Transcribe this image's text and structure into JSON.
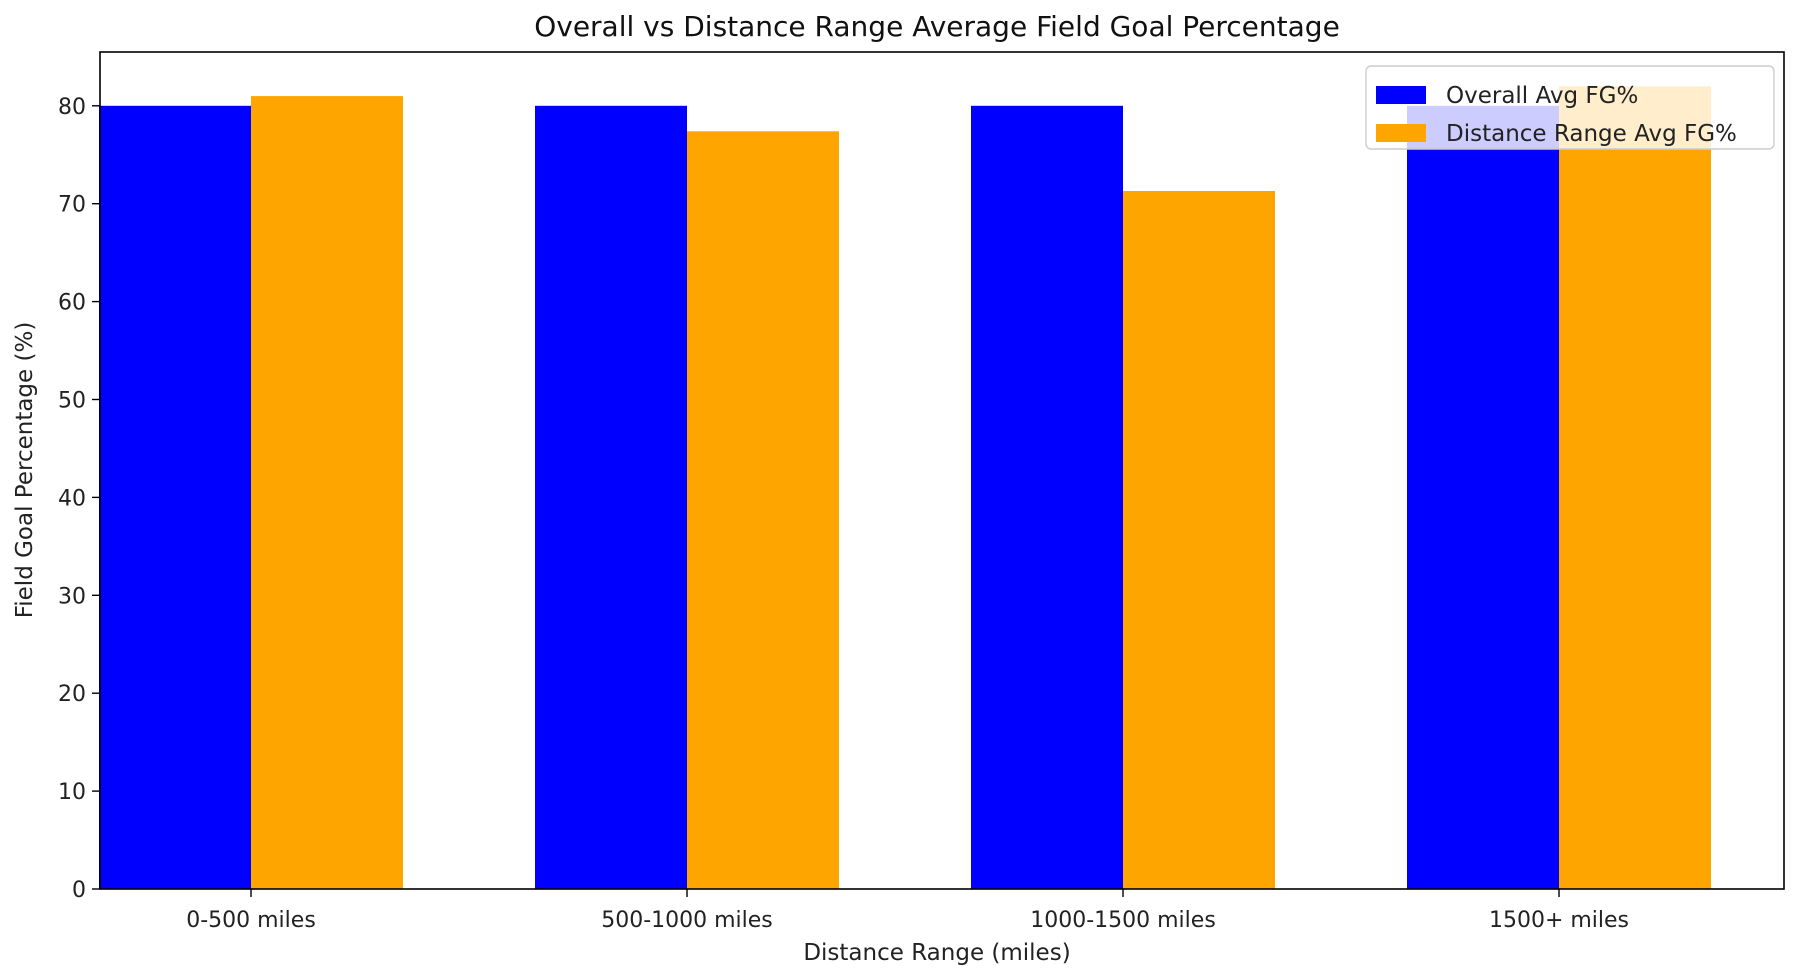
{
  "chart_data": {
    "type": "bar",
    "title": "Overall vs Distance Range Average Field Goal Percentage",
    "xlabel": "Distance Range (miles)",
    "ylabel": "Field Goal Percentage (%)",
    "categories": [
      "0-500 miles",
      "500-1000 miles",
      "1000-1500 miles",
      "1500+ miles"
    ],
    "series": [
      {
        "name": "Overall Avg FG%",
        "color": "#0000ff",
        "values": [
          80.0,
          80.0,
          80.0,
          80.0
        ]
      },
      {
        "name": "Distance Range Avg FG%",
        "color": "#ffa500",
        "values": [
          81.0,
          77.4,
          71.3,
          82.0
        ]
      }
    ],
    "ylim": [
      0,
      85.5
    ],
    "yticks": [
      0,
      10,
      20,
      30,
      40,
      50,
      60,
      70,
      80
    ],
    "grid": false,
    "legend_position": "top-right"
  }
}
